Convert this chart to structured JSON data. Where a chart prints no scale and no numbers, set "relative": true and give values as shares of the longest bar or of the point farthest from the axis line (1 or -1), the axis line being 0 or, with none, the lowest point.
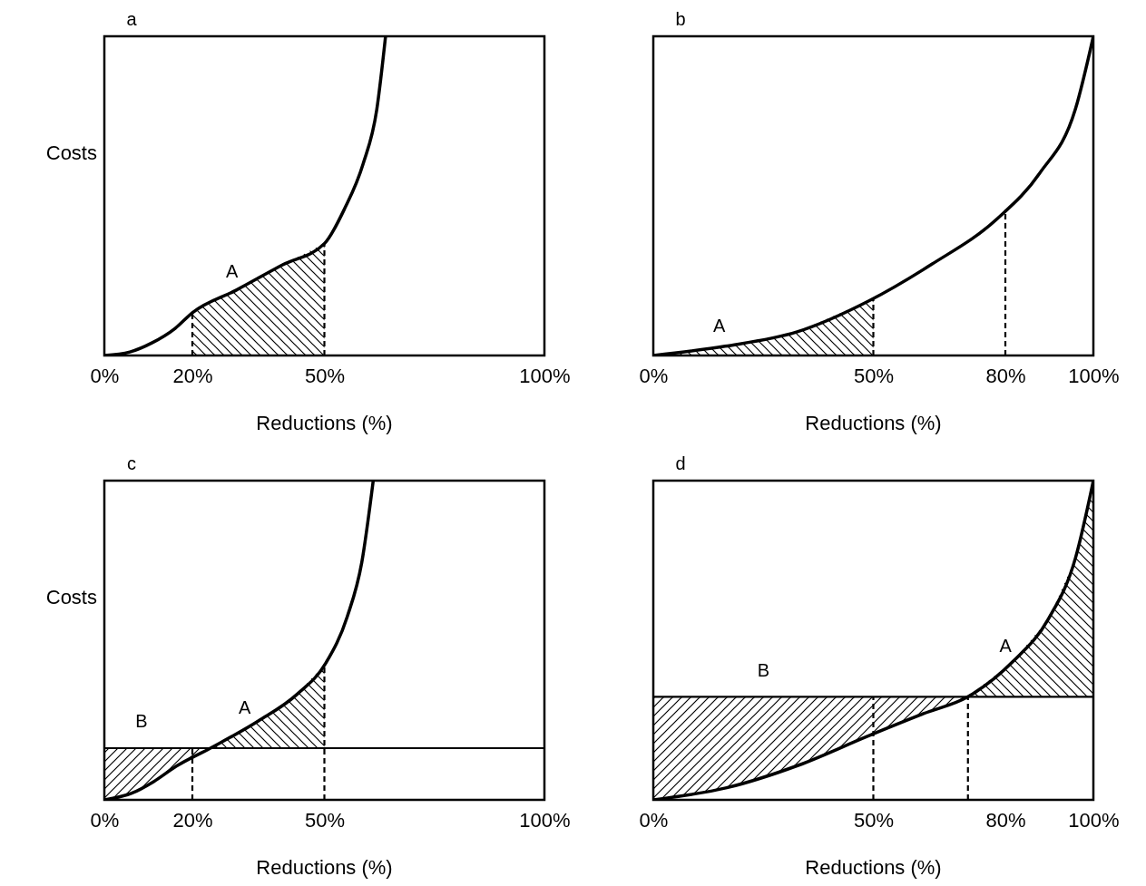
{
  "chart_data": [
    {
      "type": "line",
      "title": "a",
      "xlabel": "Reductions (%)",
      "ylabel": "Costs",
      "relative": true,
      "xlim": [
        0,
        100
      ],
      "xticks": [
        {
          "value": 0,
          "label": "0%"
        },
        {
          "value": 20,
          "label": "20%"
        },
        {
          "value": 50,
          "label": "50%"
        },
        {
          "value": 100,
          "label": "100%"
        }
      ],
      "tick_labels": "x",
      "x": [
        0,
        5.8,
        10.9,
        16.1,
        20,
        30,
        40.5,
        50.1,
        54.6,
        58.8,
        61.9,
        63.9
      ],
      "series": [
        {
          "color": "#000000",
          "values": [
            0,
            0.011,
            0.04,
            0.085,
            0.134,
            0.205,
            0.284,
            0.352,
            0.46,
            0.6,
            0.77,
            1
          ]
        },
        {
          "type": "area",
          "color": "#000000",
          "x": [
            20,
            30,
            40.5,
            50
          ],
          "values": [
            0.134,
            0.205,
            0.284,
            0.351
          ]
        }
      ],
      "ref_lines": [
        {
          "axis": "x",
          "value": 20,
          "line_style": "dashed"
        },
        {
          "axis": "x",
          "value": 50,
          "line_style": "dashed"
        }
      ],
      "annotations": [
        "A"
      ]
    },
    {
      "type": "line",
      "title": "b",
      "xlabel": "Reductions (%)",
      "relative": true,
      "xlim": [
        0,
        100
      ],
      "xticks": [
        {
          "value": 0,
          "label": "0%"
        },
        {
          "value": 50,
          "label": "50%"
        },
        {
          "value": 80,
          "label": "80%"
        },
        {
          "value": 100,
          "label": "100%"
        }
      ],
      "tick_labels": "x",
      "x": [
        0,
        16.3,
        32.7,
        49,
        63.3,
        78.2,
        87.8,
        95.9,
        100
      ],
      "series": [
        {
          "color": "#000000",
          "values": [
            0,
            0.029,
            0.074,
            0.171,
            0.286,
            0.429,
            0.571,
            0.771,
            1
          ]
        },
        {
          "type": "area",
          "color": "#000000",
          "x": [
            0,
            16.3,
            32.7,
            49,
            50
          ],
          "values": [
            0,
            0.029,
            0.074,
            0.171,
            0.179
          ]
        }
      ],
      "ref_lines": [
        {
          "axis": "x",
          "value": 50,
          "line_style": "dashed"
        },
        {
          "axis": "x",
          "value": 80,
          "line_style": "dashed"
        }
      ],
      "annotations": [
        "A"
      ]
    },
    {
      "type": "line",
      "title": "c",
      "xlabel": "Reductions (%)",
      "ylabel": "Costs",
      "relative": true,
      "xlim": [
        0,
        100
      ],
      "xticks": [
        {
          "value": 0,
          "label": "0%"
        },
        {
          "value": 20,
          "label": "20%"
        },
        {
          "value": 50,
          "label": "50%"
        },
        {
          "value": 100,
          "label": "100%"
        }
      ],
      "tick_labels": "x",
      "x": [
        0,
        6.1,
        11.2,
        16.3,
        24.1,
        35,
        43.9,
        50.4,
        55.2,
        58.5,
        61.1
      ],
      "series": [
        {
          "color": "#000000",
          "values": [
            0,
            0.02,
            0.057,
            0.105,
            0.162,
            0.247,
            0.332,
            0.43,
            0.574,
            0.744,
            1
          ]
        },
        {
          "type": "area",
          "color": "#000000",
          "x": [
            24.1,
            35,
            43.9,
            50
          ],
          "values": [
            0.162,
            0.247,
            0.332,
            0.424
          ]
        }
      ],
      "ref_lines": [
        {
          "axis": "y",
          "value": 0.162,
          "line_style": "solid"
        },
        {
          "axis": "x",
          "value": 20,
          "line_style": "dashed"
        },
        {
          "axis": "x",
          "value": 50,
          "line_style": "dashed"
        }
      ],
      "annotations": [
        "B",
        "A"
      ]
    },
    {
      "type": "line",
      "title": "d",
      "xlabel": "Reductions (%)",
      "relative": true,
      "xlim": [
        0,
        100
      ],
      "xticks": [
        {
          "value": 0,
          "label": "0%"
        },
        {
          "value": 50,
          "label": "50%"
        },
        {
          "value": 80,
          "label": "80%"
        },
        {
          "value": 100,
          "label": "100%"
        }
      ],
      "tick_labels": "x",
      "x": [
        0,
        16.7,
        32.9,
        48.8,
        61.4,
        71.5,
        81.7,
        89.8,
        95.9,
        100
      ],
      "series": [
        {
          "color": "#000000",
          "values": [
            0,
            0.038,
            0.108,
            0.2,
            0.27,
            0.323,
            0.433,
            0.567,
            0.756,
            1
          ]
        },
        {
          "type": "area",
          "color": "#000000",
          "x": [
            71.5,
            81.7,
            89.8,
            95.9,
            100
          ],
          "values": [
            0.323,
            0.433,
            0.567,
            0.756,
            1
          ]
        }
      ],
      "ref_lines": [
        {
          "axis": "y",
          "value": 0.323,
          "line_style": "solid"
        },
        {
          "axis": "x",
          "value": 50,
          "line_style": "dashed"
        },
        {
          "axis": "x",
          "value": 71.5,
          "line_style": "dashed"
        }
      ],
      "annotations": [
        "B",
        "A"
      ]
    }
  ]
}
